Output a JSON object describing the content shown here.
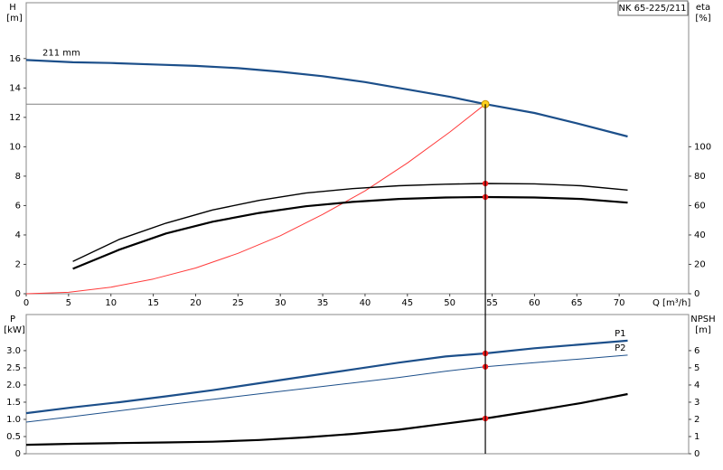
{
  "chart_data": [
    {
      "type": "line",
      "title": "NK 65-225/211",
      "ylabel": "H",
      "ylabel_unit": "[m]",
      "y2label": "eta",
      "y2label_unit": "[%]",
      "xlabel": "Q [m³/h]",
      "xlim": [
        0,
        78.2
      ],
      "xticks": [
        0,
        5,
        10,
        15,
        20,
        25,
        30,
        35,
        40,
        45,
        50,
        55,
        60,
        65,
        70
      ],
      "ylim": [
        0,
        19.8
      ],
      "yticks": [
        0,
        2,
        4,
        6,
        8,
        10,
        12,
        14,
        16
      ],
      "y2lim": [
        0,
        198
      ],
      "y2ticks": [
        0,
        20,
        40,
        60,
        80,
        100
      ],
      "series": [
        {
          "name": "211 mm",
          "label_at": "start",
          "color": "#1c4f8a",
          "style": "thick",
          "x": [
            0,
            5.5,
            10,
            15,
            20,
            25,
            30,
            35,
            40,
            45,
            50,
            54.2,
            60,
            65,
            71
          ],
          "values": [
            15.9,
            15.75,
            15.7,
            15.6,
            15.5,
            15.35,
            15.1,
            14.8,
            14.4,
            13.9,
            13.4,
            12.9,
            12.3,
            11.6,
            10.7
          ]
        },
        {
          "color": "#ff3b3b",
          "style": "thin",
          "x": [
            0,
            5,
            10,
            15,
            20,
            25,
            30,
            35,
            40,
            45,
            50,
            54.2
          ],
          "values": [
            0,
            0.1,
            0.45,
            1.0,
            1.75,
            2.75,
            3.95,
            5.4,
            7.0,
            8.9,
            11.0,
            12.9
          ]
        },
        {
          "color": "#000000",
          "style": "medium",
          "axis": "y2",
          "x": [
            5.5,
            11,
            16.5,
            22,
            27.5,
            33,
            38.5,
            44,
            49.5,
            54.2,
            60,
            65.5,
            71
          ],
          "values": [
            22,
            37,
            48,
            57,
            63.5,
            68.5,
            71.5,
            73.5,
            74.5,
            75,
            74.8,
            73.5,
            70.5
          ]
        },
        {
          "color": "#000000",
          "style": "thick",
          "axis": "y2",
          "x": [
            5.5,
            11,
            16.5,
            22,
            27.5,
            33,
            38.5,
            44,
            49.5,
            54.2,
            60,
            65.5,
            71
          ],
          "values": [
            17,
            30,
            41,
            49,
            55,
            59.5,
            62.5,
            64.5,
            65.5,
            65.8,
            65.5,
            64.5,
            62
          ]
        }
      ],
      "operating_point": {
        "x": 54.2,
        "y": 12.9,
        "color": "#ffd21f"
      },
      "points": [
        {
          "x": 54.2,
          "y": 75,
          "axis": "y2",
          "color": "#ff1a1a"
        },
        {
          "x": 54.2,
          "y": 65.8,
          "axis": "y2",
          "color": "#ff1a1a"
        }
      ]
    },
    {
      "type": "line",
      "ylabel": "P",
      "ylabel_unit": "[kW]",
      "y2label": "NPSH",
      "y2label_unit": "[m]",
      "xlim": [
        0,
        78.2
      ],
      "ylim": [
        0,
        4.05
      ],
      "yticks": [
        0,
        0.5,
        {
          "value": 1,
          "label": "1.0"
        },
        1.5,
        {
          "value": 2,
          "label": "2.0"
        },
        2.5,
        {
          "value": 3,
          "label": "3.0"
        }
      ],
      "y2lim": [
        0,
        8.1
      ],
      "y2ticks": [
        0,
        1,
        2,
        3,
        4,
        5,
        6
      ],
      "series": [
        {
          "name": "P1",
          "label_at": "end",
          "color": "#1c4f8a",
          "style": "thick",
          "x": [
            0,
            5.5,
            11,
            16.5,
            22,
            27.5,
            33,
            38.5,
            44,
            49.5,
            54.2,
            60,
            65.5,
            71
          ],
          "values": [
            1.18,
            1.35,
            1.5,
            1.67,
            1.85,
            2.05,
            2.25,
            2.45,
            2.65,
            2.83,
            2.92,
            3.07,
            3.18,
            3.29
          ]
        },
        {
          "name": "P2",
          "label_at": "end",
          "color": "#1c4f8a",
          "style": "thin",
          "x": [
            0,
            5.5,
            11,
            16.5,
            22,
            27.5,
            33,
            38.5,
            44,
            49.5,
            54.2,
            60,
            65.5,
            71
          ],
          "values": [
            0.92,
            1.08,
            1.25,
            1.42,
            1.58,
            1.74,
            1.9,
            2.06,
            2.22,
            2.4,
            2.53,
            2.65,
            2.76,
            2.87
          ]
        },
        {
          "color": "#000000",
          "style": "thick",
          "axis": "y2",
          "x": [
            0,
            5.5,
            11,
            16.5,
            22,
            27.5,
            33,
            38.5,
            44,
            49.5,
            54.2,
            60,
            65.5,
            71
          ],
          "values": [
            0.52,
            0.58,
            0.62,
            0.66,
            0.7,
            0.8,
            0.95,
            1.15,
            1.4,
            1.75,
            2.05,
            2.5,
            2.95,
            3.47
          ]
        }
      ],
      "points": [
        {
          "x": 54.2,
          "y": 2.92,
          "color": "#ff1a1a"
        },
        {
          "x": 54.2,
          "y": 2.53,
          "color": "#ff1a1a"
        },
        {
          "x": 54.2,
          "y": 2.05,
          "axis": "y2",
          "color": "#ff1a1a"
        }
      ]
    }
  ]
}
